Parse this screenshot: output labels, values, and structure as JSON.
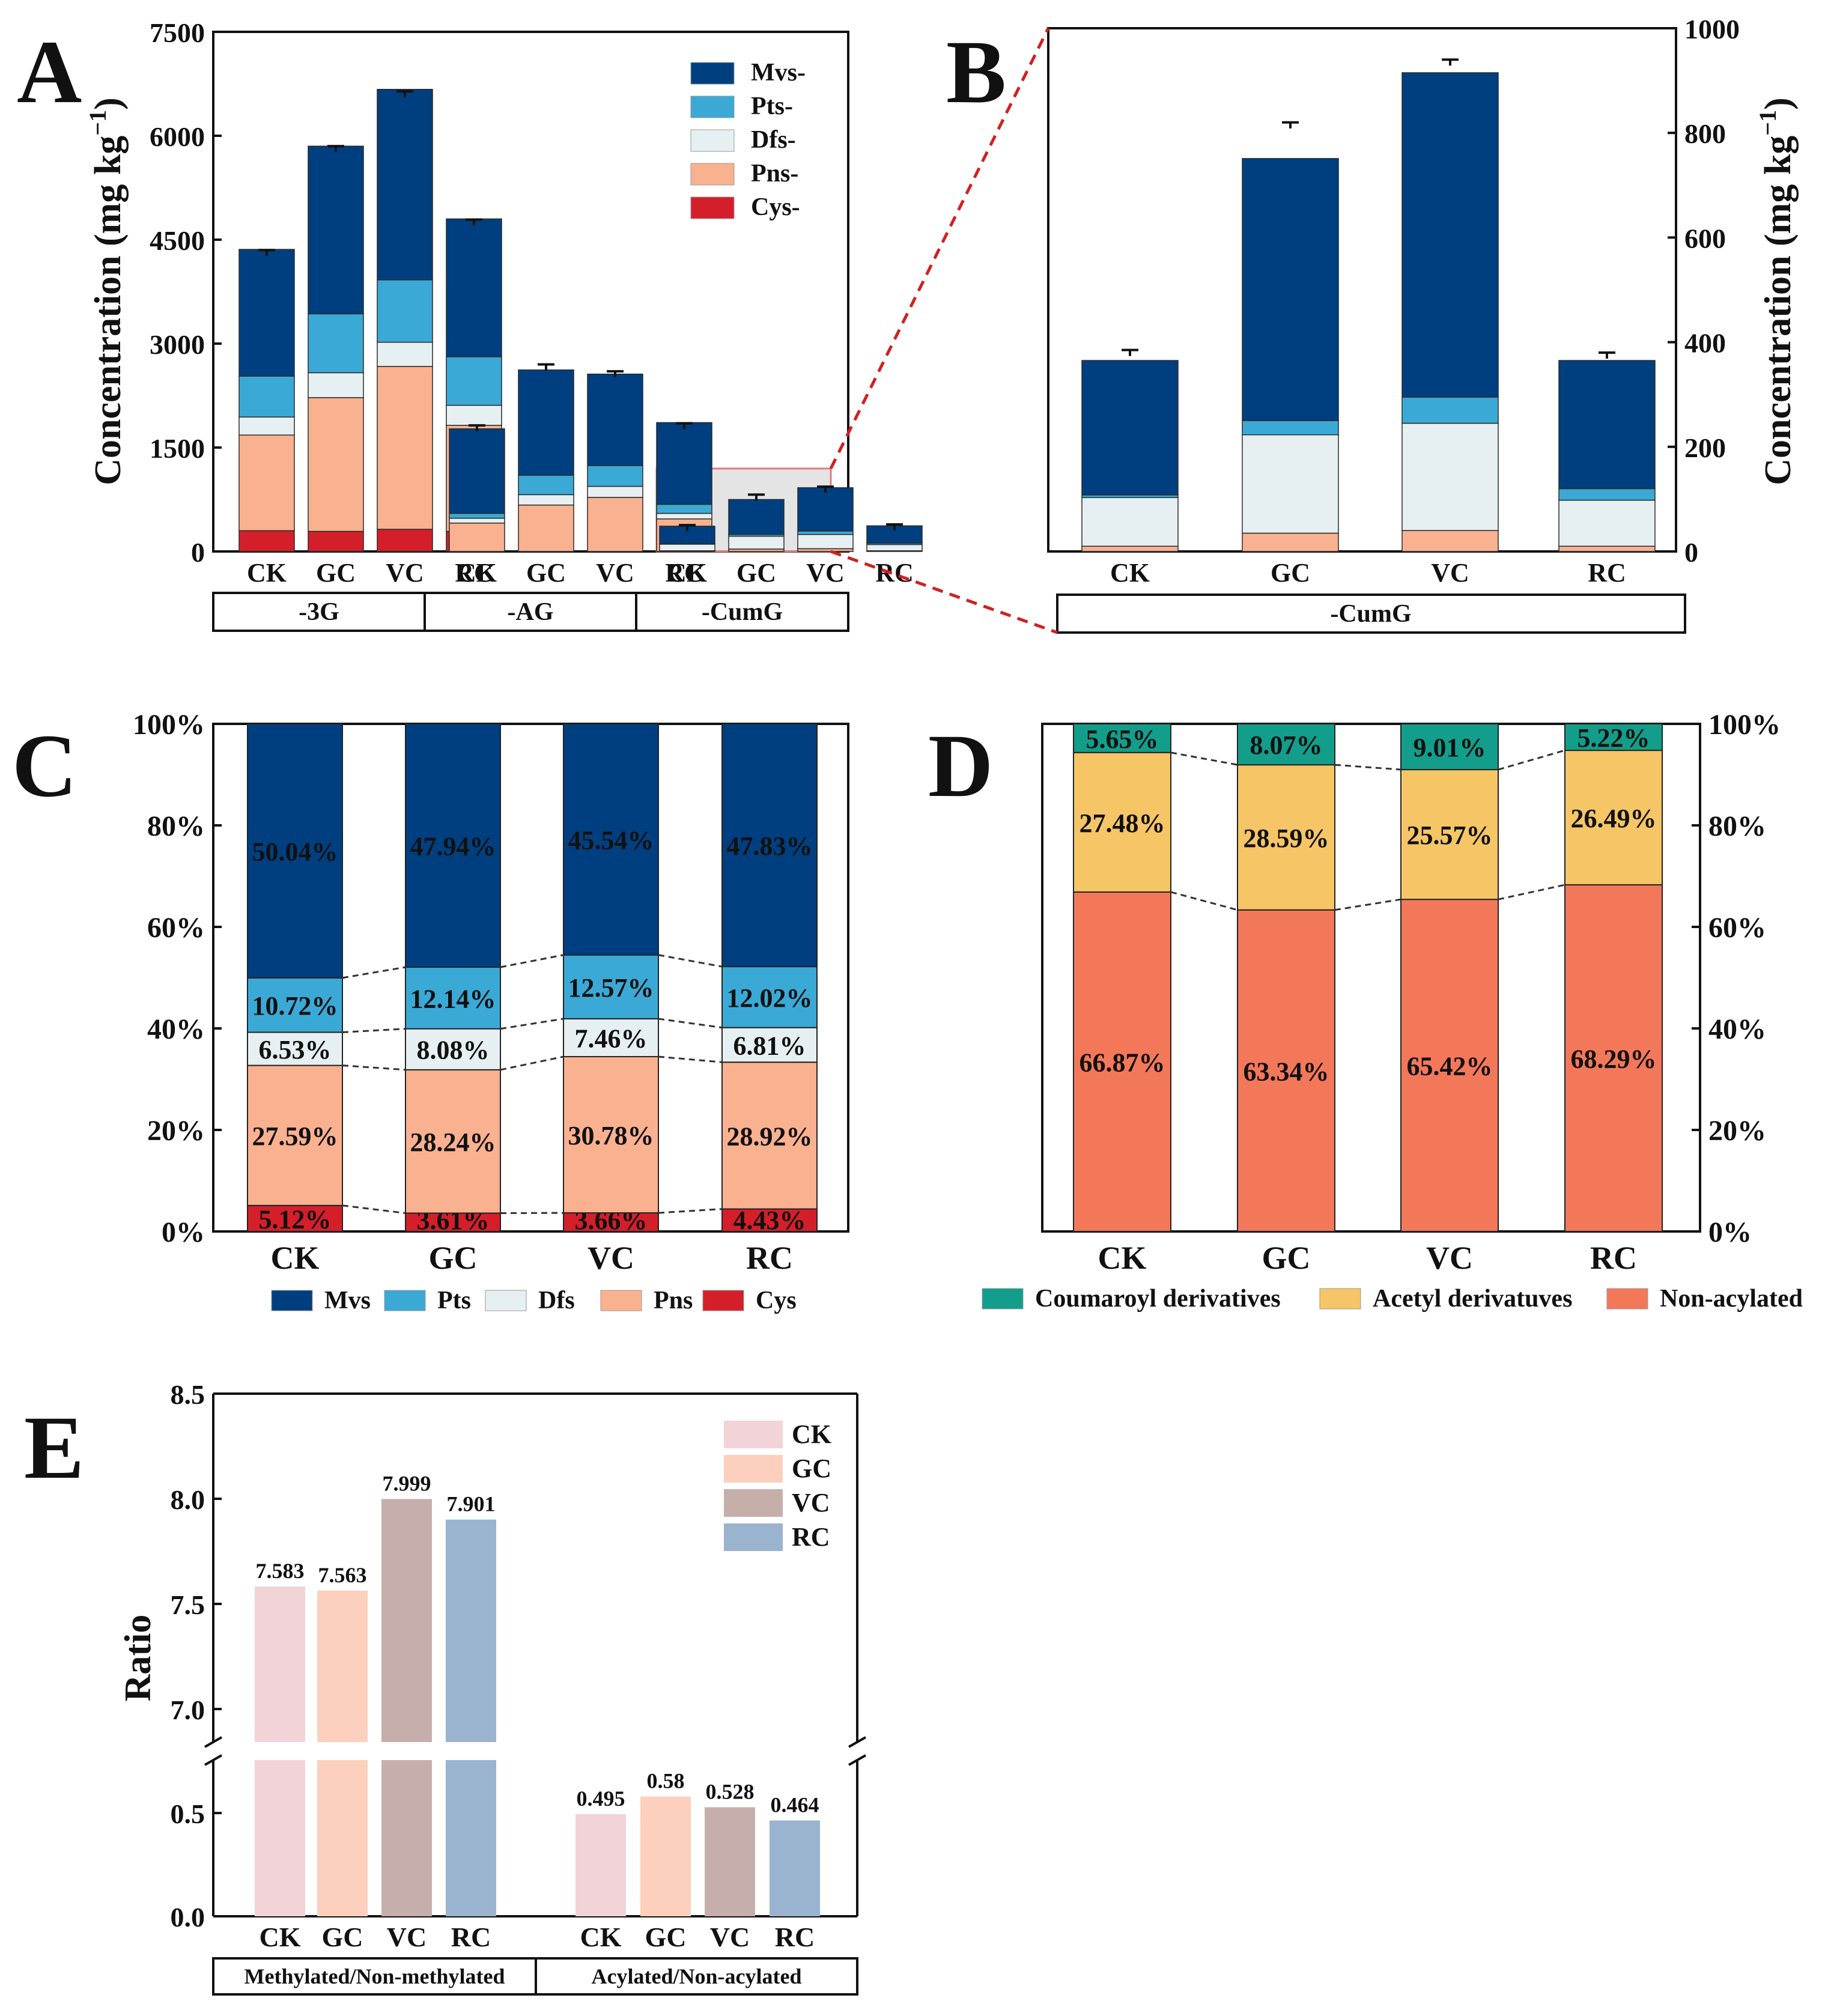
{
  "colors": {
    "mvs": "#003f7f",
    "pts": "#3ba9d6",
    "dfs": "#e6f0f2",
    "pns": "#f9b190",
    "cys": "#d41f2a",
    "coumaroyl": "#129e8a",
    "acetyl": "#f5c566",
    "nonacyl": "#f3785a",
    "ck": "#f2d3d8",
    "gc": "#fcd0bc",
    "vc": "#c6afab",
    "rc": "#9ab3cf"
  },
  "chart_data": [
    {
      "panel": "A",
      "type": "bar",
      "stacked": true,
      "ylabel": "Concentration (mg kg",
      "ylabel_sup": "−1",
      "ylabel_close": ")",
      "ylim": [
        0,
        7500
      ],
      "yticks": [
        "0",
        "1500",
        "3000",
        "4500",
        "6000",
        "7500"
      ],
      "groups": [
        {
          "name": "-3G",
          "categories": [
            "CK",
            "GC",
            "VC",
            "RC"
          ]
        },
        {
          "name": "-AG",
          "categories": [
            "CK",
            "GC",
            "VC",
            "RC"
          ]
        },
        {
          "name": "-CumG",
          "categories": [
            "CK",
            "GC",
            "VC",
            "RC"
          ]
        }
      ],
      "series": [
        {
          "name": "Cys-",
          "color_key": "cys",
          "values": [
            300,
            290,
            320,
            290,
            0,
            0,
            0,
            0,
            0,
            0,
            0,
            0
          ]
        },
        {
          "name": "Pns-",
          "color_key": "pns",
          "values": [
            1380,
            1930,
            2350,
            1530,
            410,
            670,
            780,
            470,
            10,
            35,
            40,
            10
          ]
        },
        {
          "name": "Dfs-",
          "color_key": "dfs",
          "values": [
            260,
            360,
            350,
            290,
            70,
            150,
            160,
            80,
            95,
            185,
            205,
            90
          ]
        },
        {
          "name": "Pts-",
          "color_key": "pts",
          "values": [
            590,
            850,
            900,
            700,
            70,
            280,
            300,
            130,
            5,
            25,
            50,
            20
          ]
        },
        {
          "name": "Mvs-",
          "color_key": "mvs",
          "values": [
            1830,
            2420,
            2750,
            1990,
            1220,
            1520,
            1320,
            1180,
            255,
            505,
            625,
            250
          ]
        }
      ],
      "errors": [
        [
          4350,
          5850,
          6640,
          4790,
          1820,
          2700,
          2600,
          1850,
          380,
          820,
          935,
          390
        ]
      ],
      "legend": [
        "Mvs-",
        "Pts-",
        "Dfs-",
        "Pns-",
        "Cys-"
      ]
    },
    {
      "panel": "B",
      "type": "bar",
      "stacked": true,
      "ylabel": "Concentration (mg kg",
      "ylabel_sup": "−1",
      "ylabel_close": ")",
      "ylim": [
        0,
        1000
      ],
      "yticks": [
        "0",
        "200",
        "400",
        "600",
        "800",
        "1000"
      ],
      "group": "-CumG",
      "categories": [
        "CK",
        "GC",
        "VC",
        "RC"
      ],
      "series": [
        {
          "name": "Pns-",
          "color_key": "pns",
          "values": [
            10,
            35,
            40,
            10
          ]
        },
        {
          "name": "Dfs-",
          "color_key": "dfs",
          "values": [
            93,
            188,
            205,
            88
          ]
        },
        {
          "name": "Pts-",
          "color_key": "pts",
          "values": [
            5,
            27,
            50,
            22
          ]
        },
        {
          "name": "Mvs-",
          "color_key": "mvs",
          "values": [
            257,
            501,
            620,
            245
          ]
        }
      ],
      "errors": [
        385,
        820,
        940,
        380
      ]
    },
    {
      "panel": "C",
      "type": "bar",
      "stacked": true,
      "percent": true,
      "ylim": [
        0,
        100
      ],
      "yticks": [
        "0%",
        "20%",
        "40%",
        "60%",
        "80%",
        "100%"
      ],
      "categories": [
        "CK",
        "GC",
        "VC",
        "RC"
      ],
      "series": [
        {
          "name": "Cys",
          "color_key": "cys",
          "values": [
            5.12,
            3.61,
            3.66,
            4.43
          ],
          "labels": [
            "5.12%",
            "3.61%",
            "3.66%",
            "4.43%"
          ]
        },
        {
          "name": "Pns",
          "color_key": "pns",
          "values": [
            27.59,
            28.24,
            30.78,
            28.92
          ],
          "labels": [
            "27.59%",
            "28.24%",
            "30.78%",
            "28.92%"
          ]
        },
        {
          "name": "Dfs",
          "color_key": "dfs",
          "values": [
            6.53,
            8.08,
            7.46,
            6.81
          ],
          "labels": [
            "6.53%",
            "8.08%",
            "7.46%",
            "6.81%"
          ]
        },
        {
          "name": "Pts",
          "color_key": "pts",
          "values": [
            10.72,
            12.14,
            12.57,
            12.02
          ],
          "labels": [
            "10.72%",
            "12.14%",
            "12.57%",
            "12.02%"
          ]
        },
        {
          "name": "Mvs",
          "color_key": "mvs",
          "values": [
            50.04,
            47.94,
            45.54,
            47.83
          ],
          "labels": [
            "50.04%",
            "47.94%",
            "45.54%",
            "47.83%"
          ]
        }
      ],
      "legend": [
        "Mvs",
        "Pts",
        "Dfs",
        "Pns",
        "Cys"
      ]
    },
    {
      "panel": "D",
      "type": "bar",
      "stacked": true,
      "percent": true,
      "ylim": [
        0,
        100
      ],
      "yticks": [
        "0%",
        "20%",
        "40%",
        "60%",
        "80%",
        "100%"
      ],
      "categories": [
        "CK",
        "GC",
        "VC",
        "RC"
      ],
      "series": [
        {
          "name": "Non-acylated",
          "color_key": "nonacyl",
          "values": [
            66.87,
            63.34,
            65.42,
            68.29
          ],
          "labels": [
            "66.87%",
            "63.34%",
            "65.42%",
            "68.29%"
          ]
        },
        {
          "name": "Acetyl derivatuves",
          "color_key": "acetyl",
          "values": [
            27.48,
            28.59,
            25.57,
            26.49
          ],
          "labels": [
            "27.48%",
            "28.59%",
            "25.57%",
            "26.49%"
          ]
        },
        {
          "name": "Coumaroyl derivatives",
          "color_key": "coumaroyl",
          "values": [
            5.65,
            8.07,
            9.01,
            5.22
          ],
          "labels": [
            "5.65%",
            "8.07%",
            "9.01%",
            "5.22%"
          ]
        }
      ],
      "legend": [
        "Coumaroyl derivatives",
        "Acetyl derivatuves",
        "Non-acylated"
      ]
    },
    {
      "panel": "E",
      "type": "bar",
      "ylabel": "Ratio",
      "broken_axis": true,
      "lower_ylim": [
        0,
        0.8
      ],
      "upper_ylim": [
        6.8,
        8.5
      ],
      "yticks_lower": [
        "0.0",
        "0.5"
      ],
      "yticks_upper": [
        "7.0",
        "7.5",
        "8.0",
        "8.5"
      ],
      "groups": [
        "Methylated/Non-methylated",
        "Acylated/Non-acylated"
      ],
      "categories": [
        "CK",
        "GC",
        "VC",
        "RC"
      ],
      "color_keys": [
        "ck",
        "gc",
        "vc",
        "rc"
      ],
      "values": [
        [
          7.583,
          7.563,
          7.999,
          7.901
        ],
        [
          0.495,
          0.58,
          0.528,
          0.464
        ]
      ],
      "labels": [
        [
          "7.583",
          "7.563",
          "7.999",
          "7.901"
        ],
        [
          "0.495",
          "0.58",
          "0.528",
          "0.464"
        ]
      ],
      "legend": [
        "CK",
        "GC",
        "VC",
        "RC"
      ]
    }
  ]
}
